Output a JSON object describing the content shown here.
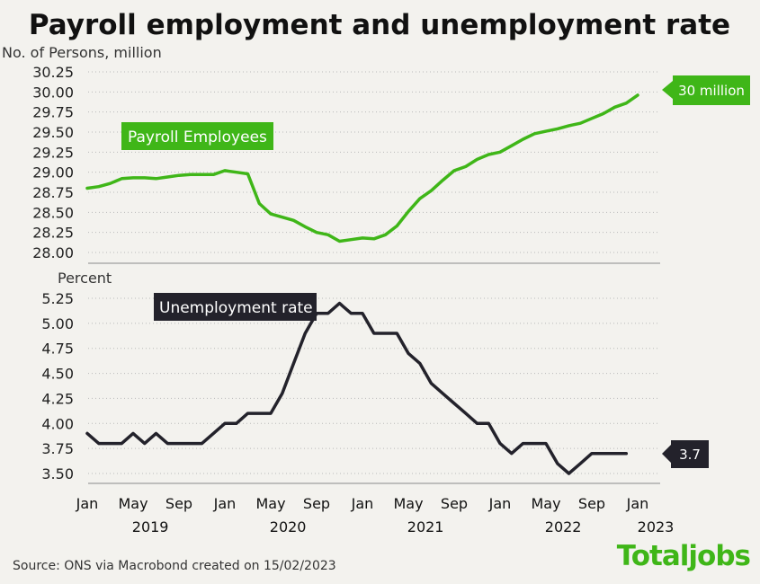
{
  "header": {
    "title": "Payroll employment and unemployment rate"
  },
  "footer": {
    "source": "Source: ONS via Macrobond created on 15/02/2023",
    "brand": "Totaljobs"
  },
  "colors": {
    "payroll": "#3fb618",
    "unemployment": "#23222b",
    "background": "#f3f2ee",
    "label_text": "#ffffff"
  },
  "chart_data": [
    {
      "type": "line",
      "ylabel": "No. of Persons, million",
      "ylim": [
        28.0,
        30.25
      ],
      "yticks": [
        "30.25",
        "30.00",
        "29.75",
        "29.50",
        "29.25",
        "29.00",
        "28.75",
        "28.50",
        "28.25",
        "28.00"
      ],
      "grid": true,
      "series": [
        {
          "name": "Payroll Employees",
          "end_label": "30 million",
          "x": [
            "2019-01",
            "2019-02",
            "2019-03",
            "2019-04",
            "2019-05",
            "2019-06",
            "2019-07",
            "2019-08",
            "2019-09",
            "2019-10",
            "2019-11",
            "2019-12",
            "2020-01",
            "2020-02",
            "2020-03",
            "2020-04",
            "2020-05",
            "2020-06",
            "2020-07",
            "2020-08",
            "2020-09",
            "2020-10",
            "2020-11",
            "2020-12",
            "2021-01",
            "2021-02",
            "2021-03",
            "2021-04",
            "2021-05",
            "2021-06",
            "2021-07",
            "2021-08",
            "2021-09",
            "2021-10",
            "2021-11",
            "2021-12",
            "2022-01",
            "2022-02",
            "2022-03",
            "2022-04",
            "2022-05",
            "2022-06",
            "2022-07",
            "2022-08",
            "2022-09",
            "2022-10",
            "2022-11",
            "2022-12",
            "2023-01"
          ],
          "values": [
            28.8,
            28.82,
            28.86,
            28.92,
            28.93,
            28.93,
            28.92,
            28.94,
            28.96,
            28.97,
            28.97,
            28.97,
            29.02,
            29.0,
            28.98,
            28.61,
            28.48,
            28.44,
            28.4,
            28.32,
            28.25,
            28.22,
            28.14,
            28.16,
            28.18,
            28.17,
            28.22,
            28.33,
            28.51,
            28.67,
            28.77,
            28.9,
            29.02,
            29.07,
            29.16,
            29.22,
            29.25,
            29.33,
            29.41,
            29.48,
            29.51,
            29.54,
            29.58,
            29.61,
            29.67,
            29.73,
            29.81,
            29.86,
            29.96
          ]
        }
      ]
    },
    {
      "type": "line",
      "ylabel": "Percent",
      "ylim": [
        3.5,
        5.25
      ],
      "yticks": [
        "5.25",
        "5.00",
        "4.75",
        "4.50",
        "4.25",
        "4.00",
        "3.75",
        "3.50"
      ],
      "grid": true,
      "x_axis": {
        "months": [
          "Jan",
          "May",
          "Sep",
          "Jan",
          "May",
          "Sep",
          "Jan",
          "May",
          "Sep",
          "Jan",
          "May",
          "Sep",
          "Jan"
        ],
        "years": [
          "2019",
          "2020",
          "2021",
          "2022",
          "2023"
        ]
      },
      "series": [
        {
          "name": "Unemployment rate",
          "end_label": "3.7",
          "x": [
            "2019-01",
            "2019-02",
            "2019-03",
            "2019-04",
            "2019-05",
            "2019-06",
            "2019-07",
            "2019-08",
            "2019-09",
            "2019-10",
            "2019-11",
            "2019-12",
            "2020-01",
            "2020-02",
            "2020-03",
            "2020-04",
            "2020-05",
            "2020-06",
            "2020-07",
            "2020-08",
            "2020-09",
            "2020-10",
            "2020-11",
            "2020-12",
            "2021-01",
            "2021-02",
            "2021-03",
            "2021-04",
            "2021-05",
            "2021-06",
            "2021-07",
            "2021-08",
            "2021-09",
            "2021-10",
            "2021-11",
            "2021-12",
            "2022-01",
            "2022-02",
            "2022-03",
            "2022-04",
            "2022-05",
            "2022-06",
            "2022-07",
            "2022-08",
            "2022-09",
            "2022-10",
            "2022-11",
            "2022-12"
          ],
          "values": [
            3.9,
            3.8,
            3.8,
            3.8,
            3.9,
            3.8,
            3.9,
            3.8,
            3.8,
            3.8,
            3.8,
            3.9,
            4.0,
            4.0,
            4.1,
            4.1,
            4.1,
            4.3,
            4.6,
            4.9,
            5.1,
            5.1,
            5.2,
            5.1,
            5.1,
            4.9,
            4.9,
            4.9,
            4.7,
            4.6,
            4.4,
            4.3,
            4.2,
            4.1,
            4.0,
            4.0,
            3.8,
            3.7,
            3.8,
            3.8,
            3.8,
            3.6,
            3.5,
            3.6,
            3.7,
            3.7,
            3.7,
            3.7
          ]
        }
      ]
    }
  ]
}
